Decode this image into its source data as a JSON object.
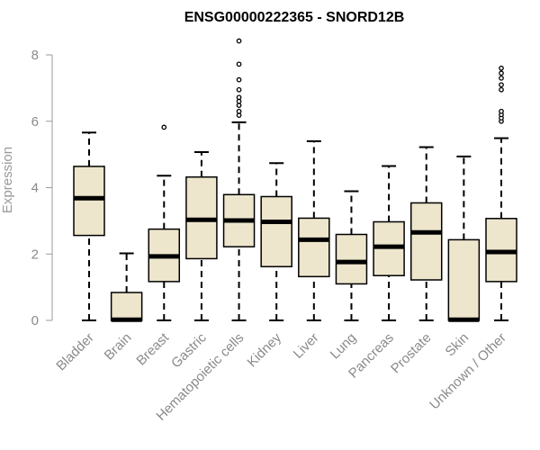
{
  "chart_data": {
    "type": "boxplot",
    "title": "ENSG00000222365 - SNORD12B",
    "ylabel": "Expression",
    "xlabel": "",
    "ylim": [
      0,
      8.5
    ],
    "yticks": [
      0,
      2,
      4,
      6,
      8
    ],
    "grid": false,
    "legend": "none",
    "colors": {
      "box_fill": "#ede6cd",
      "box_stroke": "#000000",
      "median": "#000000",
      "axis": "#9a9a9a",
      "tick_text": "#8a8a8a",
      "title_text": "#000000"
    },
    "categories": [
      "Bladder",
      "Brain",
      "Breast",
      "Gastric",
      "Hematopoietic cells",
      "Kidney",
      "Liver",
      "Lung",
      "Pancreas",
      "Prostate",
      "Skin",
      "Unknown / Other"
    ],
    "boxes": [
      {
        "category": "Bladder",
        "min": 0,
        "q1": 2.56,
        "median": 3.68,
        "q3": 4.64,
        "max": 5.66,
        "outliers": []
      },
      {
        "category": "Brain",
        "min": 0,
        "q1": 0,
        "median": 0.02,
        "q3": 0.84,
        "max": 2.02,
        "outliers": []
      },
      {
        "category": "Breast",
        "min": 0,
        "q1": 1.17,
        "median": 1.93,
        "q3": 2.75,
        "max": 4.36,
        "outliers": [
          5.82
        ]
      },
      {
        "category": "Gastric",
        "min": 0,
        "q1": 1.86,
        "median": 3.03,
        "q3": 4.32,
        "max": 5.07,
        "outliers": []
      },
      {
        "category": "Hematopoietic cells",
        "min": 0,
        "q1": 2.22,
        "median": 3.01,
        "q3": 3.79,
        "max": 5.97,
        "outliers": [
          6.18,
          6.3,
          6.48,
          6.6,
          6.72,
          6.95,
          7.25,
          7.72,
          8.42
        ]
      },
      {
        "category": "Kidney",
        "min": 0,
        "q1": 1.62,
        "median": 2.97,
        "q3": 3.73,
        "max": 4.74,
        "outliers": []
      },
      {
        "category": "Liver",
        "min": 0,
        "q1": 1.32,
        "median": 2.43,
        "q3": 3.08,
        "max": 5.4,
        "outliers": []
      },
      {
        "category": "Lung",
        "min": 0,
        "q1": 1.1,
        "median": 1.76,
        "q3": 2.59,
        "max": 3.89,
        "outliers": []
      },
      {
        "category": "Pancreas",
        "min": 0,
        "q1": 1.35,
        "median": 2.22,
        "q3": 2.97,
        "max": 4.65,
        "outliers": []
      },
      {
        "category": "Prostate",
        "min": 0,
        "q1": 1.22,
        "median": 2.65,
        "q3": 3.54,
        "max": 5.22,
        "outliers": []
      },
      {
        "category": "Skin",
        "min": 0,
        "q1": 0,
        "median": 0.02,
        "q3": 2.43,
        "max": 4.94,
        "outliers": []
      },
      {
        "category": "Unknown / Other",
        "min": 0,
        "q1": 1.17,
        "median": 2.06,
        "q3": 3.07,
        "max": 5.49,
        "outliers": [
          6.0,
          6.1,
          6.2,
          6.3,
          6.95,
          7.1,
          7.3,
          7.45,
          7.6
        ]
      }
    ]
  }
}
